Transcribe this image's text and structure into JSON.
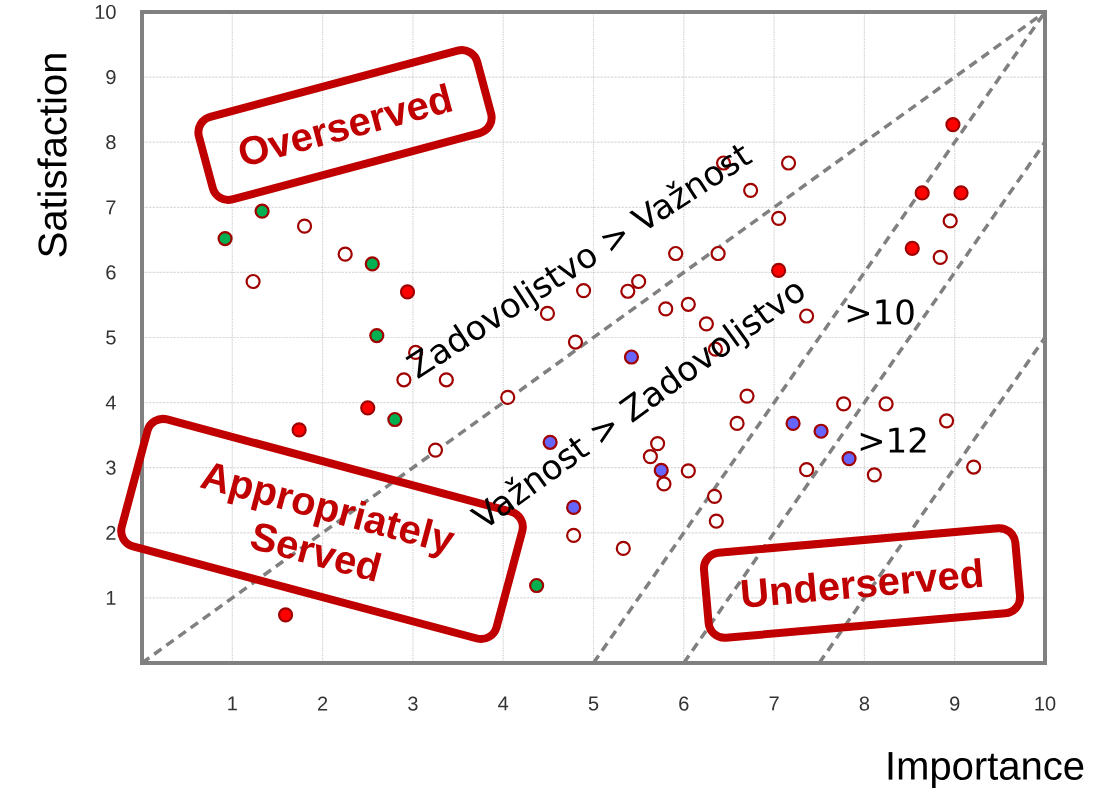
{
  "chart_data": {
    "type": "scatter",
    "xlabel": "Importance",
    "ylabel": "Satisfaction",
    "xlim": [
      0,
      10
    ],
    "ylim": [
      0,
      10
    ],
    "xticks": [
      1,
      2,
      3,
      4,
      5,
      6,
      7,
      8,
      9,
      10
    ],
    "yticks": [
      1,
      2,
      3,
      4,
      5,
      6,
      7,
      8,
      9,
      10
    ],
    "grid": true,
    "annotations": [
      "Overserved",
      "Appropriately Served",
      "Underserved",
      "Zadovoljstvo > Važnost",
      "Važnost > Zadovoljstvo",
      ">10",
      ">12"
    ],
    "series": [
      {
        "type": "line",
        "line_style": "dashed",
        "marker": "none",
        "color": "#808080",
        "x": [
          0,
          10
        ],
        "values": [
          0,
          10
        ]
      },
      {
        "type": "line",
        "line_style": "dashed",
        "marker": "none",
        "color": "#808080",
        "x": [
          5,
          10
        ],
        "values": [
          0,
          10
        ]
      },
      {
        "type": "line",
        "line_style": "dashed",
        "marker": "none",
        "color": "#808080",
        "x": [
          6,
          10
        ],
        "values": [
          0,
          8
        ]
      },
      {
        "type": "line",
        "line_style": "dashed",
        "marker": "none",
        "color": "#808080",
        "x": [
          7.5,
          10
        ],
        "values": [
          0,
          5
        ]
      },
      {
        "marker": "circle",
        "color": "#ffffff",
        "x": [
          1.8,
          2.25,
          1.23,
          4.49,
          4.89,
          7.16,
          6.44,
          6.74,
          7.05,
          8.95,
          5.91,
          6.38,
          8.84,
          5.38,
          5.5,
          5.8,
          6.05,
          6.25,
          7.36,
          3.03,
          2.9,
          3.37,
          4.8,
          4.05,
          3.25,
          4.78,
          6.35,
          6.7,
          6.59,
          5.71,
          5.63,
          5.78,
          6.05,
          6.34,
          6.36,
          5.33,
          7.77,
          8.24,
          7.36,
          8.11,
          8.91,
          9.21
        ],
        "values": [
          6.71,
          6.28,
          5.86,
          5.37,
          5.72,
          7.68,
          7.68,
          7.26,
          6.83,
          6.79,
          6.29,
          6.29,
          6.23,
          5.71,
          5.86,
          5.44,
          5.51,
          5.21,
          5.33,
          4.77,
          4.35,
          4.35,
          4.93,
          4.08,
          3.27,
          1.96,
          4.82,
          4.1,
          3.68,
          3.37,
          3.17,
          2.75,
          2.95,
          2.56,
          2.18,
          1.76,
          3.98,
          3.98,
          2.97,
          2.89,
          3.72,
          3.01
        ]
      },
      {
        "marker": "circle",
        "color": "#ff0000",
        "x": [
          2.94,
          8.98,
          8.64,
          9.07,
          8.53,
          7.05,
          2.5,
          1.74,
          1.59
        ],
        "values": [
          5.7,
          8.27,
          7.22,
          7.22,
          6.37,
          6.03,
          3.92,
          3.58,
          0.74
        ]
      },
      {
        "marker": "circle",
        "color": "#00b050",
        "x": [
          1.33,
          0.92,
          2.55,
          2.6,
          2.8,
          4.37
        ],
        "values": [
          6.94,
          6.52,
          6.13,
          5.03,
          3.74,
          1.19
        ]
      },
      {
        "marker": "circle",
        "color": "#6666ff",
        "x": [
          4.52,
          4.78,
          5.42,
          5.75,
          7.21,
          7.52,
          7.83
        ],
        "values": [
          3.39,
          2.39,
          4.7,
          2.96,
          3.68,
          3.56,
          3.14
        ]
      }
    ]
  }
}
